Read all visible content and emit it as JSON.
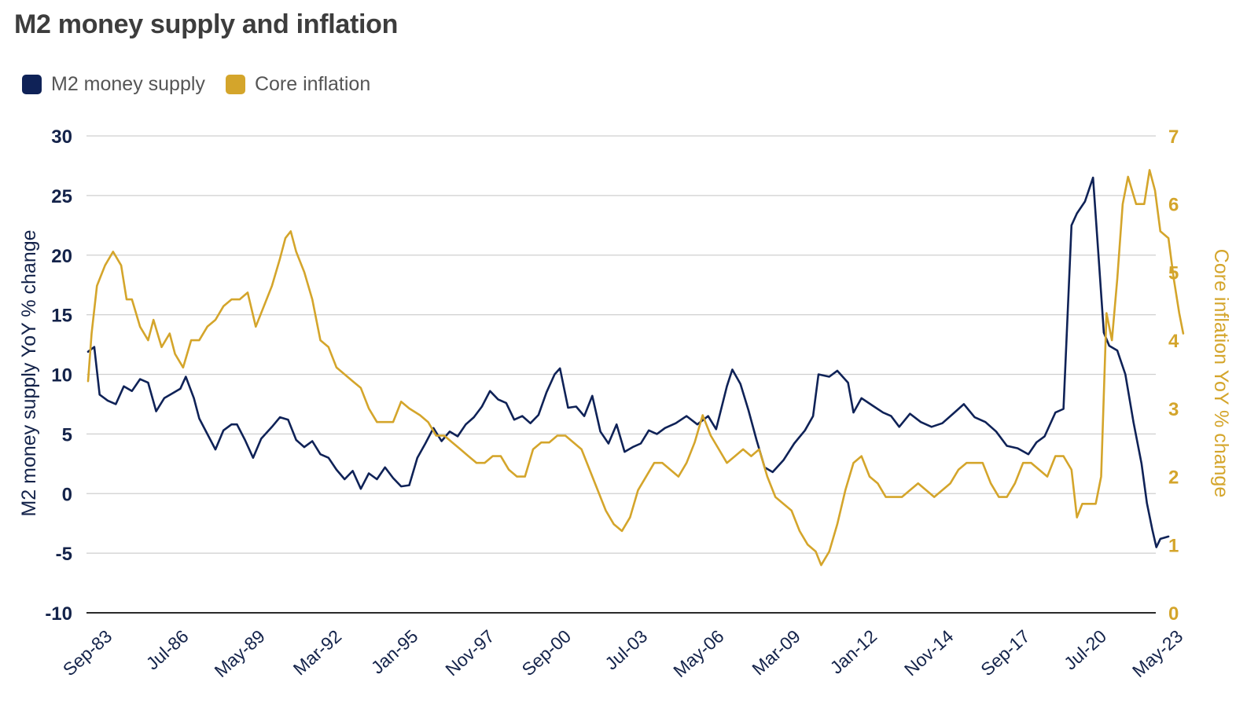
{
  "chart_data": {
    "type": "line",
    "title": "M2 money supply and inflation",
    "legend_position": "top-left",
    "grid": true,
    "x_ticks": [
      "Sep-83",
      "Jul-86",
      "May-89",
      "Mar-92",
      "Jan-95",
      "Nov-97",
      "Sep-00",
      "Jul-03",
      "May-06",
      "Mar-09",
      "Jan-12",
      "Nov-14",
      "Sep-17",
      "Jul-20",
      "May-23"
    ],
    "x_range": [
      1983.67,
      2023.33
    ],
    "y_left": {
      "label": "M2 money supply YoY % change",
      "ticks": [
        "30",
        "25",
        "20",
        "15",
        "10",
        "5",
        "0",
        "-5",
        "-10"
      ],
      "range": [
        -10,
        30
      ]
    },
    "y_right": {
      "label": "Core inflation YoY % change",
      "ticks": [
        "7",
        "6",
        "5",
        "4",
        "3",
        "2",
        "1",
        "0"
      ],
      "range": [
        0,
        7
      ]
    },
    "series": [
      {
        "name": "M2 money supply",
        "axis": "left",
        "color": "#0f2257",
        "points": [
          [
            1983.67,
            11.9
          ],
          [
            1983.9,
            12.3
          ],
          [
            1984.1,
            8.3
          ],
          [
            1984.4,
            7.8
          ],
          [
            1984.7,
            7.5
          ],
          [
            1985.0,
            9.0
          ],
          [
            1985.3,
            8.6
          ],
          [
            1985.6,
            9.6
          ],
          [
            1985.9,
            9.3
          ],
          [
            1986.2,
            6.9
          ],
          [
            1986.5,
            8.0
          ],
          [
            1986.8,
            8.4
          ],
          [
            1987.1,
            8.8
          ],
          [
            1987.3,
            9.8
          ],
          [
            1987.6,
            8.0
          ],
          [
            1987.8,
            6.3
          ],
          [
            1988.1,
            5.0
          ],
          [
            1988.4,
            3.7
          ],
          [
            1988.7,
            5.3
          ],
          [
            1989.0,
            5.8
          ],
          [
            1989.2,
            5.8
          ],
          [
            1989.5,
            4.5
          ],
          [
            1989.8,
            3.0
          ],
          [
            1990.1,
            4.6
          ],
          [
            1990.5,
            5.6
          ],
          [
            1990.8,
            6.4
          ],
          [
            1991.1,
            6.2
          ],
          [
            1991.4,
            4.5
          ],
          [
            1991.7,
            3.9
          ],
          [
            1992.0,
            4.4
          ],
          [
            1992.3,
            3.3
          ],
          [
            1992.6,
            3.0
          ],
          [
            1992.9,
            2.0
          ],
          [
            1993.2,
            1.2
          ],
          [
            1993.5,
            1.9
          ],
          [
            1993.8,
            0.4
          ],
          [
            1994.1,
            1.7
          ],
          [
            1994.4,
            1.2
          ],
          [
            1994.7,
            2.2
          ],
          [
            1995.0,
            1.3
          ],
          [
            1995.3,
            0.6
          ],
          [
            1995.6,
            0.7
          ],
          [
            1995.9,
            3.0
          ],
          [
            1996.2,
            4.2
          ],
          [
            1996.5,
            5.5
          ],
          [
            1996.8,
            4.4
          ],
          [
            1997.1,
            5.2
          ],
          [
            1997.4,
            4.8
          ],
          [
            1997.7,
            5.8
          ],
          [
            1998.0,
            6.4
          ],
          [
            1998.3,
            7.3
          ],
          [
            1998.6,
            8.6
          ],
          [
            1998.9,
            7.9
          ],
          [
            1999.2,
            7.6
          ],
          [
            1999.5,
            6.2
          ],
          [
            1999.8,
            6.5
          ],
          [
            2000.1,
            5.9
          ],
          [
            2000.4,
            6.6
          ],
          [
            2000.7,
            8.5
          ],
          [
            2001.0,
            10.0
          ],
          [
            2001.2,
            10.5
          ],
          [
            2001.5,
            7.2
          ],
          [
            2001.8,
            7.3
          ],
          [
            2002.1,
            6.5
          ],
          [
            2002.4,
            8.2
          ],
          [
            2002.7,
            5.2
          ],
          [
            2003.0,
            4.2
          ],
          [
            2003.3,
            5.8
          ],
          [
            2003.6,
            3.5
          ],
          [
            2003.9,
            3.9
          ],
          [
            2004.2,
            4.2
          ],
          [
            2004.5,
            5.3
          ],
          [
            2004.8,
            5.0
          ],
          [
            2005.1,
            5.5
          ],
          [
            2005.5,
            5.9
          ],
          [
            2005.9,
            6.5
          ],
          [
            2006.3,
            5.8
          ],
          [
            2006.7,
            6.5
          ],
          [
            2007.0,
            5.4
          ],
          [
            2007.4,
            9.0
          ],
          [
            2007.6,
            10.4
          ],
          [
            2007.9,
            9.2
          ],
          [
            2008.2,
            7.0
          ],
          [
            2008.5,
            4.5
          ],
          [
            2008.8,
            2.2
          ],
          [
            2009.1,
            1.8
          ],
          [
            2009.5,
            2.8
          ],
          [
            2009.9,
            4.2
          ],
          [
            2010.3,
            5.3
          ],
          [
            2010.6,
            6.5
          ],
          [
            2010.8,
            10.0
          ],
          [
            2011.2,
            9.8
          ],
          [
            2011.5,
            10.3
          ],
          [
            2011.9,
            9.3
          ],
          [
            2012.1,
            6.8
          ],
          [
            2012.4,
            8.0
          ],
          [
            2012.8,
            7.4
          ],
          [
            2013.2,
            6.8
          ],
          [
            2013.5,
            6.5
          ],
          [
            2013.8,
            5.6
          ],
          [
            2014.2,
            6.7
          ],
          [
            2014.6,
            6.0
          ],
          [
            2015.0,
            5.6
          ],
          [
            2015.4,
            5.9
          ],
          [
            2015.8,
            6.7
          ],
          [
            2016.2,
            7.5
          ],
          [
            2016.6,
            6.4
          ],
          [
            2017.0,
            6.0
          ],
          [
            2017.4,
            5.2
          ],
          [
            2017.8,
            4.0
          ],
          [
            2018.2,
            3.8
          ],
          [
            2018.6,
            3.3
          ],
          [
            2018.9,
            4.3
          ],
          [
            2019.2,
            4.8
          ],
          [
            2019.6,
            6.8
          ],
          [
            2019.9,
            7.1
          ],
          [
            2020.2,
            22.5
          ],
          [
            2020.4,
            23.5
          ],
          [
            2020.7,
            24.5
          ],
          [
            2021.0,
            26.5
          ],
          [
            2021.2,
            20.0
          ],
          [
            2021.4,
            13.5
          ],
          [
            2021.6,
            12.4
          ],
          [
            2021.9,
            12.0
          ],
          [
            2022.2,
            10.0
          ],
          [
            2022.5,
            6.0
          ],
          [
            2022.8,
            2.5
          ],
          [
            2023.0,
            -0.8
          ],
          [
            2023.2,
            -3.0
          ],
          [
            2023.35,
            -4.5
          ],
          [
            2023.5,
            -3.8
          ],
          [
            2023.65,
            -3.7
          ],
          [
            2023.8,
            -3.6
          ]
        ]
      },
      {
        "name": "Core inflation",
        "axis": "right",
        "color": "#d4a52b",
        "points": [
          [
            1983.67,
            3.4
          ],
          [
            1983.8,
            4.1
          ],
          [
            1984.0,
            4.8
          ],
          [
            1984.3,
            5.1
          ],
          [
            1984.6,
            5.3
          ],
          [
            1984.9,
            5.1
          ],
          [
            1985.1,
            4.6
          ],
          [
            1985.3,
            4.6
          ],
          [
            1985.6,
            4.2
          ],
          [
            1985.9,
            4.0
          ],
          [
            1986.1,
            4.3
          ],
          [
            1986.4,
            3.9
          ],
          [
            1986.7,
            4.1
          ],
          [
            1986.9,
            3.8
          ],
          [
            1987.2,
            3.6
          ],
          [
            1987.5,
            4.0
          ],
          [
            1987.8,
            4.0
          ],
          [
            1988.1,
            4.2
          ],
          [
            1988.4,
            4.3
          ],
          [
            1988.7,
            4.5
          ],
          [
            1989.0,
            4.6
          ],
          [
            1989.3,
            4.6
          ],
          [
            1989.6,
            4.7
          ],
          [
            1989.9,
            4.2
          ],
          [
            1990.2,
            4.5
          ],
          [
            1990.5,
            4.8
          ],
          [
            1990.8,
            5.2
          ],
          [
            1991.0,
            5.5
          ],
          [
            1991.2,
            5.6
          ],
          [
            1991.4,
            5.3
          ],
          [
            1991.7,
            5.0
          ],
          [
            1992.0,
            4.6
          ],
          [
            1992.3,
            4.0
          ],
          [
            1992.6,
            3.9
          ],
          [
            1992.9,
            3.6
          ],
          [
            1993.2,
            3.5
          ],
          [
            1993.5,
            3.4
          ],
          [
            1993.8,
            3.3
          ],
          [
            1994.1,
            3.0
          ],
          [
            1994.4,
            2.8
          ],
          [
            1994.7,
            2.8
          ],
          [
            1995.0,
            2.8
          ],
          [
            1995.3,
            3.1
          ],
          [
            1995.6,
            3.0
          ],
          [
            1996.0,
            2.9
          ],
          [
            1996.3,
            2.8
          ],
          [
            1996.6,
            2.6
          ],
          [
            1996.9,
            2.6
          ],
          [
            1997.2,
            2.5
          ],
          [
            1997.5,
            2.4
          ],
          [
            1997.8,
            2.3
          ],
          [
            1998.1,
            2.2
          ],
          [
            1998.4,
            2.2
          ],
          [
            1998.7,
            2.3
          ],
          [
            1999.0,
            2.3
          ],
          [
            1999.3,
            2.1
          ],
          [
            1999.6,
            2.0
          ],
          [
            1999.9,
            2.0
          ],
          [
            2000.2,
            2.4
          ],
          [
            2000.5,
            2.5
          ],
          [
            2000.8,
            2.5
          ],
          [
            2001.1,
            2.6
          ],
          [
            2001.4,
            2.6
          ],
          [
            2001.7,
            2.5
          ],
          [
            2002.0,
            2.4
          ],
          [
            2002.3,
            2.1
          ],
          [
            2002.6,
            1.8
          ],
          [
            2002.9,
            1.5
          ],
          [
            2003.2,
            1.3
          ],
          [
            2003.5,
            1.2
          ],
          [
            2003.8,
            1.4
          ],
          [
            2004.1,
            1.8
          ],
          [
            2004.4,
            2.0
          ],
          [
            2004.7,
            2.2
          ],
          [
            2005.0,
            2.2
          ],
          [
            2005.3,
            2.1
          ],
          [
            2005.6,
            2.0
          ],
          [
            2005.9,
            2.2
          ],
          [
            2006.2,
            2.5
          ],
          [
            2006.5,
            2.9
          ],
          [
            2006.8,
            2.6
          ],
          [
            2007.1,
            2.4
          ],
          [
            2007.4,
            2.2
          ],
          [
            2007.7,
            2.3
          ],
          [
            2008.0,
            2.4
          ],
          [
            2008.3,
            2.3
          ],
          [
            2008.6,
            2.4
          ],
          [
            2008.9,
            2.0
          ],
          [
            2009.2,
            1.7
          ],
          [
            2009.5,
            1.6
          ],
          [
            2009.8,
            1.5
          ],
          [
            2010.1,
            1.2
          ],
          [
            2010.4,
            1.0
          ],
          [
            2010.7,
            0.9
          ],
          [
            2010.9,
            0.7
          ],
          [
            2011.2,
            0.9
          ],
          [
            2011.5,
            1.3
          ],
          [
            2011.8,
            1.8
          ],
          [
            2012.1,
            2.2
          ],
          [
            2012.4,
            2.3
          ],
          [
            2012.7,
            2.0
          ],
          [
            2013.0,
            1.9
          ],
          [
            2013.3,
            1.7
          ],
          [
            2013.6,
            1.7
          ],
          [
            2013.9,
            1.7
          ],
          [
            2014.2,
            1.8
          ],
          [
            2014.5,
            1.9
          ],
          [
            2014.8,
            1.8
          ],
          [
            2015.1,
            1.7
          ],
          [
            2015.4,
            1.8
          ],
          [
            2015.7,
            1.9
          ],
          [
            2016.0,
            2.1
          ],
          [
            2016.3,
            2.2
          ],
          [
            2016.6,
            2.2
          ],
          [
            2016.9,
            2.2
          ],
          [
            2017.2,
            1.9
          ],
          [
            2017.5,
            1.7
          ],
          [
            2017.8,
            1.7
          ],
          [
            2018.1,
            1.9
          ],
          [
            2018.4,
            2.2
          ],
          [
            2018.7,
            2.2
          ],
          [
            2019.0,
            2.1
          ],
          [
            2019.3,
            2.0
          ],
          [
            2019.6,
            2.3
          ],
          [
            2019.9,
            2.3
          ],
          [
            2020.2,
            2.1
          ],
          [
            2020.4,
            1.4
          ],
          [
            2020.6,
            1.6
          ],
          [
            2020.9,
            1.6
          ],
          [
            2021.1,
            1.6
          ],
          [
            2021.3,
            2.0
          ],
          [
            2021.5,
            4.4
          ],
          [
            2021.7,
            4.0
          ],
          [
            2021.9,
            4.9
          ],
          [
            2022.1,
            6.0
          ],
          [
            2022.3,
            6.4
          ],
          [
            2022.6,
            6.0
          ],
          [
            2022.9,
            6.0
          ],
          [
            2023.1,
            6.5
          ],
          [
            2023.3,
            6.2
          ],
          [
            2023.5,
            5.6
          ],
          [
            2023.8,
            5.5
          ],
          [
            2024.0,
            4.9
          ],
          [
            2024.2,
            4.4
          ],
          [
            2024.35,
            4.1
          ]
        ]
      }
    ]
  }
}
